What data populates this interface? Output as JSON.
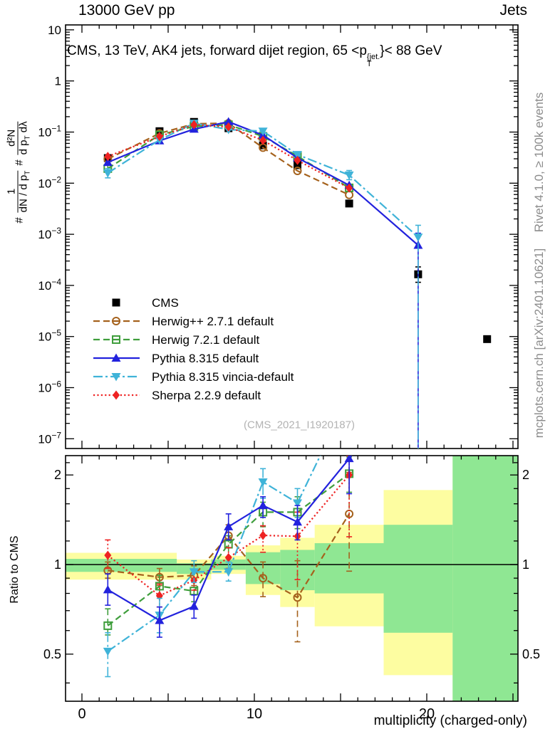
{
  "header": {
    "left": "13000 GeV pp",
    "right": "Jets"
  },
  "main_panel": {
    "title": {
      "a": "CMS, 13 TeV, AK4 jets, forward dijet region, 65 <p",
      "sup": "{jet.",
      "sub": "T",
      "b": "}< 88 GeV"
    },
    "ylabel": {
      "h1": "#",
      "n1": "1",
      "d1a": "dN / d p",
      "d1sub": "T",
      "h2": "#",
      "n2": "d²N",
      "d2a": "d p",
      "d2sub": "T",
      "d2b": " dλ"
    },
    "watermark": "(CMS_2021_I1920187)"
  },
  "ratio_panel": {
    "ylabel": "Ratio to CMS"
  },
  "xaxis": {
    "label": "multiplicity (charged-only)"
  },
  "right_margin": {
    "top": "Rivet 4.1.0, ≥ 100k events",
    "bottom": "mcplots.cern.ch [arXiv:2401.10621]"
  },
  "colors": {
    "yellow_band": "#fdfda1",
    "green_band": "#8fe793",
    "cms": "#000000",
    "herwigpp": "#a5621d",
    "herwig7": "#3f9e3c",
    "pythia": "#2222dd",
    "vincia": "#3fb3d8",
    "sherpa": "#ee2222",
    "frame": "#000000",
    "watermark": "#b3b3b3",
    "margin_text": "#8c8c8c"
  },
  "legend": [
    {
      "label": "CMS",
      "color": "#000000",
      "marker": "square-filled",
      "line": "none"
    },
    {
      "label": "Herwig++ 2.7.1 default",
      "color": "#a5621d",
      "marker": "circle-open",
      "line": "dashed"
    },
    {
      "label": "Herwig 7.2.1 default",
      "color": "#3f9e3c",
      "marker": "square-open",
      "line": "dashed"
    },
    {
      "label": "Pythia 8.315 default",
      "color": "#2222dd",
      "marker": "triangle-up",
      "line": "solid"
    },
    {
      "label": "Pythia 8.315 vincia-default",
      "color": "#3fb3d8",
      "marker": "triangle-down",
      "line": "dashdot"
    },
    {
      "label": "Sherpa 2.2.9 default",
      "color": "#ee2222",
      "marker": "diamond",
      "line": "dotted"
    }
  ],
  "chart_data": {
    "type": "line",
    "title": "CMS, 13 TeV, AK4 jets, forward dijet region, 65 < pT^{jet} < 88 GeV",
    "xlabel": "multiplicity (charged-only)",
    "ylabel_main": "# 1/(dN/dpT) # d2N/(dpT dlambda)",
    "ylabel_ratio": "Ratio to CMS",
    "x_range": [
      -0.95,
      25.3
    ],
    "xticks_minor_step": 1,
    "xticks_major": [
      0,
      5,
      10,
      15,
      20,
      25
    ],
    "xtick_labels": [
      {
        "x": 0,
        "t": "0"
      },
      {
        "x": 10,
        "t": "10"
      },
      {
        "x": 20,
        "t": "20"
      }
    ],
    "main": {
      "yscale": "log",
      "ylim": [
        6.5e-08,
        11.5
      ],
      "ytick_exponents": [
        1,
        0,
        -1,
        -2,
        -3,
        -4,
        -5,
        -6,
        -7
      ],
      "series": [
        {
          "name": "CMS",
          "color": "#000000",
          "line": "none",
          "marker": "square-filled",
          "points": [
            [
              1.5,
              0.031
            ],
            [
              4.5,
              0.104
            ],
            [
              6.5,
              0.158
            ],
            [
              8.5,
              0.119
            ],
            [
              10.5,
              0.055
            ],
            [
              12.5,
              0.0225
            ],
            [
              15.5,
              0.004
            ],
            [
              19.5,
              0.000165,
              0.000115,
              0.00023
            ],
            [
              23.5,
              8.9e-06
            ]
          ]
        },
        {
          "name": "Herwig++ 2.7.1 default",
          "color": "#a5621d",
          "line": "dashed",
          "marker": "circle-open",
          "points": [
            [
              1.5,
              0.0297
            ],
            [
              4.5,
              0.0943
            ],
            [
              6.5,
              0.145
            ],
            [
              8.5,
              0.149
            ],
            [
              10.5,
              0.0495
            ],
            [
              12.5,
              0.0174
            ],
            [
              15.5,
              0.0059
            ]
          ]
        },
        {
          "name": "Herwig 7.2.1 default",
          "color": "#3f9e3c",
          "line": "dashed",
          "marker": "square-open",
          "points": [
            [
              1.5,
              0.0193,
              0.0165,
              0.0225
            ],
            [
              4.5,
              0.088
            ],
            [
              6.5,
              0.129
            ],
            [
              8.5,
              0.139
            ],
            [
              10.5,
              0.0825
            ],
            [
              12.5,
              0.0338
            ],
            [
              15.5,
              0.0081
            ]
          ]
        },
        {
          "name": "Pythia 8.315 default",
          "color": "#2222dd",
          "line": "solid",
          "marker": "triangle-up",
          "points": [
            [
              1.5,
              0.0255
            ],
            [
              4.5,
              0.0675
            ],
            [
              6.5,
              0.114
            ],
            [
              8.5,
              0.159
            ],
            [
              10.5,
              0.0869
            ],
            [
              12.5,
              0.0313
            ],
            [
              15.5,
              0.0091
            ],
            [
              19.5,
              0.00061,
              6e-08,
              0.00105
            ]
          ]
        },
        {
          "name": "Pythia 8.315 vincia-default",
          "color": "#3fb3d8",
          "line": "dashdot",
          "marker": "triangle-down",
          "points": [
            [
              1.5,
              0.0158,
              0.0127,
              0.0193
            ],
            [
              4.5,
              0.0703
            ],
            [
              6.5,
              0.149
            ],
            [
              8.5,
              0.112
            ],
            [
              10.5,
              0.104
            ],
            [
              12.5,
              0.0362
            ],
            [
              15.5,
              0.0144,
              0.0117,
              0.0177
            ],
            [
              19.5,
              0.00088,
              6e-08,
              0.0015
            ]
          ]
        },
        {
          "name": "Sherpa 2.2.9 default",
          "color": "#ee2222",
          "line": "dotted",
          "marker": "diamond",
          "points": [
            [
              1.5,
              0.0333
            ],
            [
              4.5,
              0.0817
            ],
            [
              6.5,
              0.14
            ],
            [
              8.5,
              0.126
            ],
            [
              10.5,
              0.0689
            ],
            [
              12.5,
              0.028
            ],
            [
              15.5,
              0.008
            ]
          ]
        }
      ]
    },
    "ratio": {
      "yscale": "log",
      "ylim": [
        0.347,
        2.32
      ],
      "reference_line": 1,
      "yticks_minor": [
        0.4,
        0.5,
        0.6,
        0.7,
        0.8,
        0.9,
        1,
        1.2,
        1.4,
        1.6,
        1.8,
        2,
        2.2
      ],
      "ytick_labels": [
        {
          "v": 0.5,
          "t": "0.5"
        },
        {
          "v": 1,
          "t": "1"
        },
        {
          "v": 2,
          "t": "2"
        }
      ],
      "bands": [
        {
          "x0": -0.95,
          "x1": 5.5,
          "yellow": [
            0.89,
            1.095
          ],
          "green": [
            0.945,
            1.045
          ]
        },
        {
          "x0": 5.5,
          "x1": 7.5,
          "yellow": [
            0.89,
            1.04
          ],
          "green": [
            0.93,
            1.01
          ]
        },
        {
          "x0": 7.5,
          "x1": 9.5,
          "yellow": [
            0.93,
            1.07
          ],
          "green": [
            0.96,
            1.04
          ]
        },
        {
          "x0": 9.5,
          "x1": 11.5,
          "yellow": [
            0.79,
            1.16
          ],
          "green": [
            0.86,
            1.1
          ]
        },
        {
          "x0": 11.5,
          "x1": 13.5,
          "yellow": [
            0.72,
            1.23
          ],
          "green": [
            0.82,
            1.12
          ]
        },
        {
          "x0": 13.5,
          "x1": 17.5,
          "yellow": [
            0.62,
            1.36
          ],
          "green": [
            0.8,
            1.18
          ]
        },
        {
          "x0": 17.5,
          "x1": 21.5,
          "yellow": [
            0.425,
            1.78
          ],
          "green": [
            0.59,
            1.36
          ]
        },
        {
          "x0": 21.5,
          "x1": 25.3,
          "yellow": [
            0.347,
            2.32
          ],
          "green": [
            0.347,
            2.32
          ]
        }
      ],
      "series": [
        {
          "name": "Herwig++ 2.7.1 default",
          "color": "#a5621d",
          "line": "dashed",
          "marker": "circle-open",
          "points": [
            [
              1.5,
              0.955,
              0.9,
              1.02
            ],
            [
              4.5,
              0.907,
              0.85,
              0.97
            ],
            [
              6.5,
              0.919,
              0.85,
              0.99
            ],
            [
              8.5,
              1.25,
              1.14,
              1.36
            ],
            [
              10.5,
              0.9,
              0.78,
              1.02
            ],
            [
              12.5,
              0.775,
              0.55,
              1.03
            ],
            [
              15.5,
              1.48,
              0.95,
              2.04
            ]
          ]
        },
        {
          "name": "Herwig 7.2.1 default",
          "color": "#3f9e3c",
          "line": "dashed",
          "marker": "square-open",
          "points": [
            [
              1.5,
              0.623,
              0.58,
              0.71
            ],
            [
              4.5,
              0.846,
              0.78,
              0.92
            ],
            [
              6.5,
              0.815,
              0.75,
              0.89
            ],
            [
              8.5,
              1.17,
              1.06,
              1.25
            ],
            [
              10.5,
              1.5,
              1.34,
              1.62
            ],
            [
              12.5,
              1.5,
              1.32,
              1.69
            ],
            [
              15.5,
              2.02,
              1.75,
              2.3
            ]
          ]
        },
        {
          "name": "Sherpa 2.2.9 default",
          "color": "#ee2222",
          "line": "dotted",
          "marker": "diamond",
          "points": [
            [
              1.5,
              1.074,
              0.97,
              1.21
            ],
            [
              4.5,
              0.786,
              0.72,
              0.86
            ],
            [
              6.5,
              0.886,
              0.82,
              0.96
            ],
            [
              8.5,
              1.055,
              0.97,
              1.14
            ],
            [
              10.5,
              1.253,
              1.1,
              1.35
            ],
            [
              12.5,
              1.245,
              0.89,
              1.5
            ],
            [
              15.5,
              2.0,
              1.24,
              2.32
            ]
          ]
        },
        {
          "name": "Pythia 8.315 vincia-default",
          "color": "#3fb3d8",
          "line": "dashdot",
          "marker": "triangle-down",
          "line_continues_to": [
            15.5,
            3.7
          ],
          "points": [
            [
              1.5,
              0.511,
              0.42,
              0.59
            ],
            [
              4.5,
              0.676,
              0.59,
              0.77
            ],
            [
              6.5,
              0.945,
              0.87,
              1.03
            ],
            [
              8.5,
              0.945,
              0.88,
              1.02
            ],
            [
              10.5,
              1.895,
              1.67,
              2.1
            ],
            [
              12.5,
              1.61,
              1.44,
              1.8
            ]
          ]
        },
        {
          "name": "Pythia 8.315 default",
          "color": "#2222dd",
          "line": "solid",
          "marker": "triangle-up",
          "line_continues_to": [
            19.5,
            4.8
          ],
          "points": [
            [
              1.5,
              0.823,
              0.73,
              0.93
            ],
            [
              4.5,
              0.649,
              0.57,
              0.72
            ],
            [
              6.5,
              0.724,
              0.66,
              0.79
            ],
            [
              8.5,
              1.34,
              1.21,
              1.48
            ],
            [
              10.5,
              1.58,
              1.44,
              1.69
            ],
            [
              12.5,
              1.39,
              1.21,
              1.58
            ],
            [
              15.5,
              2.27,
              1.73,
              2.9
            ]
          ]
        }
      ]
    }
  }
}
